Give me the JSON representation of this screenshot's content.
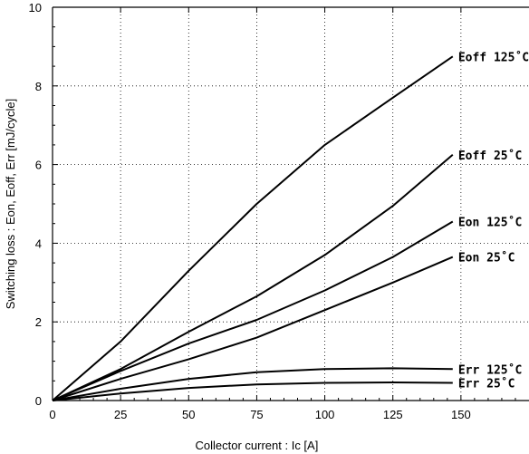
{
  "chart_data": {
    "type": "line",
    "title": "",
    "xlabel": "Collector current  :  Ic [A]",
    "ylabel": "Switching loss : Eon, Eoff, Err  [mJ/cycle]",
    "xlim": [
      0,
      175
    ],
    "ylim": [
      0,
      10
    ],
    "xticks": [
      0,
      25,
      50,
      75,
      100,
      125,
      150
    ],
    "yticks": [
      0,
      2,
      4,
      6,
      8,
      10
    ],
    "grid": true,
    "legend": "none",
    "series": [
      {
        "name": "Eoff 125˚C",
        "x": [
          0,
          25,
          50,
          75,
          100,
          125,
          147
        ],
        "y": [
          0,
          1.5,
          3.3,
          5.0,
          6.5,
          7.7,
          8.75
        ]
      },
      {
        "name": "Eoff 25˚C",
        "x": [
          0,
          25,
          50,
          75,
          100,
          125,
          147
        ],
        "y": [
          0,
          0.8,
          1.75,
          2.65,
          3.7,
          4.95,
          6.25
        ]
      },
      {
        "name": "Eon 125˚C",
        "x": [
          0,
          25,
          50,
          75,
          100,
          125,
          147
        ],
        "y": [
          0,
          0.75,
          1.45,
          2.05,
          2.8,
          3.65,
          4.55
        ]
      },
      {
        "name": "Eon 25˚C",
        "x": [
          0,
          25,
          50,
          75,
          100,
          125,
          147
        ],
        "y": [
          0,
          0.55,
          1.05,
          1.6,
          2.3,
          3.0,
          3.65
        ]
      },
      {
        "name": "Err 125˚C",
        "x": [
          0,
          25,
          50,
          75,
          100,
          125,
          147
        ],
        "y": [
          0,
          0.3,
          0.55,
          0.72,
          0.8,
          0.82,
          0.8
        ]
      },
      {
        "name": "Err 25˚C",
        "x": [
          0,
          25,
          50,
          75,
          100,
          125,
          147
        ],
        "y": [
          0,
          0.18,
          0.32,
          0.41,
          0.45,
          0.46,
          0.45
        ]
      }
    ]
  }
}
